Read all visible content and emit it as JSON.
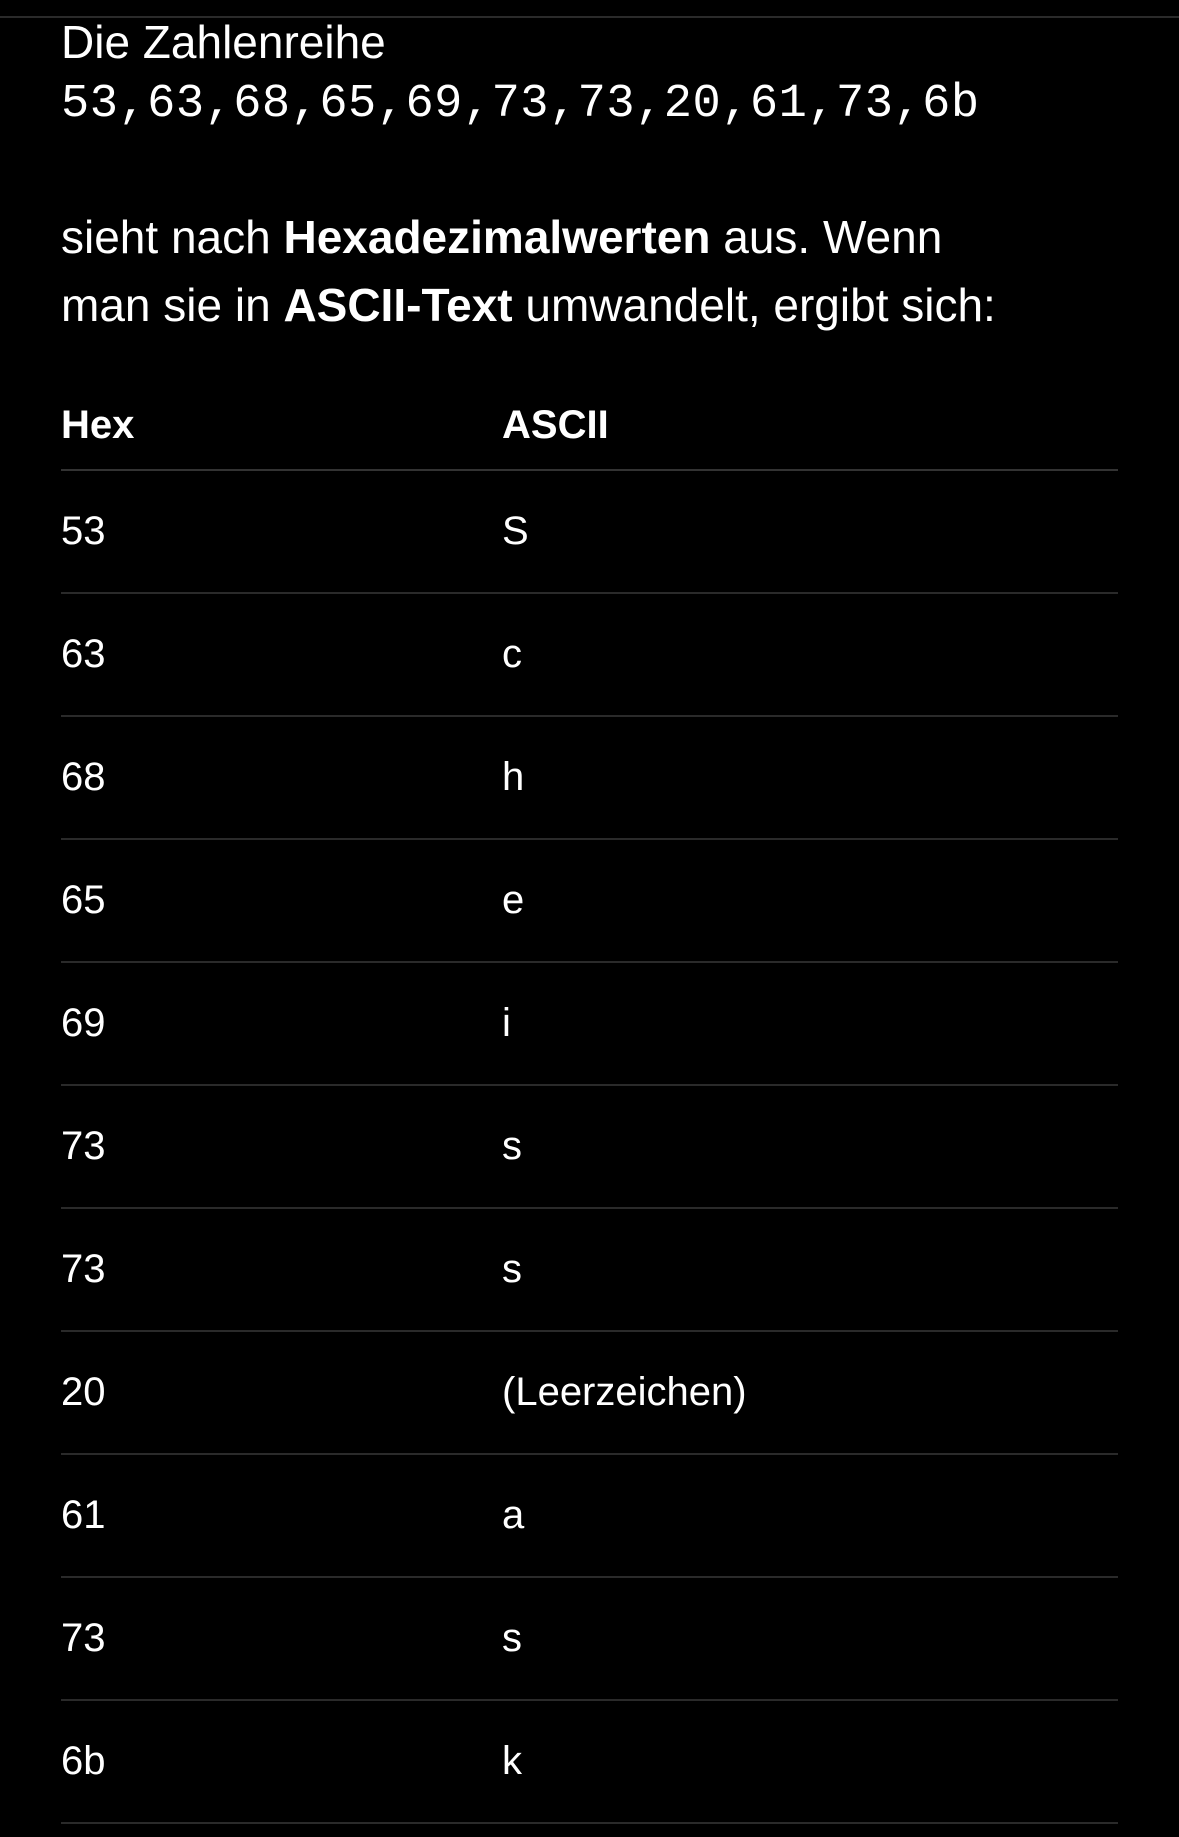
{
  "intro": {
    "label": "Die Zahlenreihe",
    "sequence": "53,63,68,65,69,73,73,20,61,73,6b"
  },
  "paragraph": {
    "part1": "sieht nach ",
    "bold1": "Hexadezimalwerten",
    "part2": " aus. Wenn",
    "part3": "man sie in ",
    "bold2": "ASCII-Text",
    "part4": " umwandelt, ergibt sich:"
  },
  "table": {
    "headers": [
      "Hex",
      "ASCII"
    ],
    "rows": [
      [
        "53",
        "S"
      ],
      [
        "63",
        "c"
      ],
      [
        "68",
        "h"
      ],
      [
        "65",
        "e"
      ],
      [
        "69",
        "i"
      ],
      [
        "73",
        "s"
      ],
      [
        "73",
        "s"
      ],
      [
        "20",
        "(Leerzeichen)"
      ],
      [
        "61",
        "a"
      ],
      [
        "73",
        "s"
      ],
      [
        "6b",
        "k"
      ]
    ]
  }
}
